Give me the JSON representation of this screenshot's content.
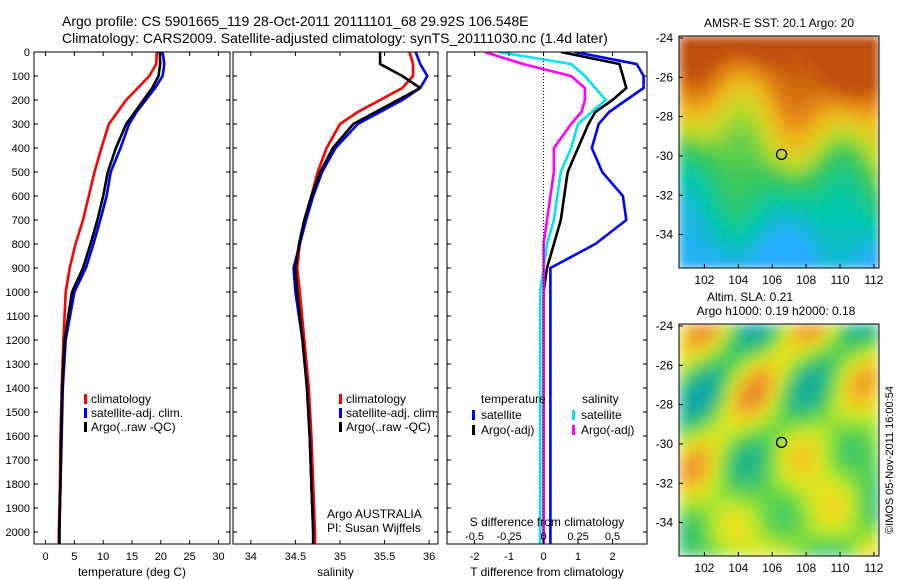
{
  "header": {
    "line1": "Argo profile: CS 5901665_119 28-Oct-2011 20111101_68 29.92S 106.548E",
    "line2": "Climatology: CARS2009. Satellite-adjusted climatology: synTS_20111030.nc (1.4d later)"
  },
  "colors": {
    "climatology": "#ff0000",
    "satellite": "#0000ff",
    "argo": "#000000",
    "salinity_satellite": "#00e5ee",
    "salinity_argo": "#ff00ff"
  },
  "depth_axis": {
    "ylim": [
      0,
      2050
    ],
    "ticks": [
      0,
      100,
      200,
      300,
      400,
      500,
      600,
      700,
      800,
      900,
      1000,
      1100,
      1200,
      1300,
      1400,
      1500,
      1600,
      1700,
      1800,
      1900,
      2000
    ],
    "inverted": true
  },
  "chart_data": [
    {
      "type": "line",
      "id": "temperature",
      "xlabel": "temperature (deg C)",
      "xlim": [
        -2,
        32
      ],
      "xticks": [
        0,
        5,
        10,
        15,
        20,
        25,
        30
      ],
      "legend": {
        "placement": "lower-left",
        "entries": [
          "climatology",
          "satellite-adj. clim.",
          "Argo(..raw -QC)"
        ]
      },
      "series": [
        {
          "name": "climatology",
          "color": "#ff0000",
          "x": [
            19.3,
            19.2,
            18.0,
            16.0,
            14.0,
            12.5,
            11.0,
            9.7,
            8.5,
            7.5,
            6.5,
            5.2,
            4.2,
            3.5,
            3.1,
            2.8,
            2.6,
            2.5,
            2.4,
            2.3,
            2.3
          ],
          "y": [
            0,
            50,
            100,
            150,
            200,
            250,
            300,
            400,
            500,
            600,
            700,
            800,
            900,
            1000,
            1200,
            1400,
            1600,
            1800,
            1900,
            2000,
            2050
          ]
        },
        {
          "name": "satellite-adj. clim.",
          "color": "#0000ff",
          "x": [
            20.3,
            20.6,
            20.3,
            19.0,
            17.4,
            15.8,
            14.5,
            13.0,
            11.3,
            10.6,
            9.5,
            8.3,
            7.0,
            5.0,
            3.5,
            3.0,
            2.8,
            2.6,
            2.5,
            2.4,
            2.4
          ],
          "y": [
            0,
            50,
            100,
            150,
            200,
            250,
            300,
            400,
            500,
            600,
            700,
            800,
            900,
            1000,
            1200,
            1400,
            1600,
            1800,
            1900,
            2000,
            2050
          ]
        },
        {
          "name": "Argo(..raw -QC)",
          "color": "#000000",
          "x": [
            19.8,
            19.9,
            19.6,
            18.5,
            17.0,
            15.5,
            14.0,
            12.2,
            10.8,
            10.0,
            9.0,
            7.8,
            6.5,
            4.6,
            3.3,
            2.9,
            2.7,
            2.6,
            2.5,
            2.4,
            2.4
          ],
          "y": [
            0,
            50,
            100,
            150,
            200,
            250,
            300,
            400,
            500,
            600,
            700,
            800,
            900,
            1000,
            1200,
            1400,
            1600,
            1800,
            1900,
            2000,
            2050
          ]
        }
      ]
    },
    {
      "type": "line",
      "id": "salinity",
      "xlabel": "salinity",
      "xlim": [
        33.8,
        36.1
      ],
      "xticks": [
        34,
        34.5,
        35,
        35.5,
        36
      ],
      "legend": {
        "placement": "lower-left",
        "entries": [
          "climatology",
          "satellite-adj. clim.",
          "Argo(..raw -QC)"
        ]
      },
      "annotations": [
        "Argo AUSTRALIA",
        "PI: Susan Wijffels"
      ],
      "series": [
        {
          "name": "climatology",
          "color": "#ff0000",
          "x": [
            35.78,
            35.82,
            35.82,
            35.7,
            35.45,
            35.2,
            35.0,
            34.85,
            34.75,
            34.68,
            34.6,
            34.55,
            34.52,
            34.55,
            34.6,
            34.65,
            34.68,
            34.7,
            34.72,
            34.72
          ],
          "y": [
            0,
            50,
            100,
            150,
            200,
            250,
            300,
            400,
            500,
            600,
            700,
            800,
            900,
            1000,
            1200,
            1400,
            1600,
            1800,
            2000,
            2050
          ]
        },
        {
          "name": "satellite-adj. clim.",
          "color": "#0000ff",
          "x": [
            35.85,
            35.9,
            35.98,
            35.9,
            35.7,
            35.45,
            35.2,
            34.95,
            34.8,
            34.7,
            34.62,
            34.55,
            34.48,
            34.5,
            34.58,
            34.63,
            34.66,
            34.68,
            34.7,
            34.7
          ],
          "y": [
            0,
            50,
            100,
            150,
            200,
            250,
            300,
            400,
            500,
            600,
            700,
            800,
            900,
            1000,
            1200,
            1400,
            1600,
            1800,
            2000,
            2050
          ]
        },
        {
          "name": "Argo(..raw -QC)",
          "color": "#000000",
          "x": [
            35.45,
            35.45,
            35.7,
            35.9,
            35.65,
            35.4,
            35.15,
            34.92,
            34.78,
            34.68,
            34.6,
            34.54,
            34.5,
            34.52,
            34.58,
            34.63,
            34.66,
            34.68,
            34.7,
            34.7
          ],
          "y": [
            0,
            50,
            100,
            150,
            200,
            250,
            300,
            400,
            500,
            600,
            700,
            800,
            900,
            1000,
            1200,
            1400,
            1600,
            1800,
            2000,
            2050
          ]
        }
      ]
    },
    {
      "type": "line",
      "id": "difference",
      "xlabel": "T difference from climatology",
      "xlabel_top": "S difference from climatology",
      "xlim": [
        -2.8,
        3.0
      ],
      "xticks": [
        -2,
        -1,
        0,
        1,
        2
      ],
      "xticks_top_labels": [
        "-0.5",
        "-0.25",
        "0",
        "0.25",
        "0.5"
      ],
      "xticks_top_positions": [
        -2,
        -1,
        0,
        1,
        2
      ],
      "legend": {
        "placement": "center",
        "entries": [
          "satellite",
          "Argo(-adj)",
          "satellite",
          "Argo(-adj)"
        ],
        "headings": [
          "temperature",
          "salinity"
        ]
      },
      "series": [
        {
          "name": "satellite",
          "group": "temperature",
          "color": "#0000ff",
          "x": [
            0.9,
            2.7,
            2.9,
            2.9,
            2.4,
            1.9,
            1.6,
            1.4,
            1.7,
            2.3,
            2.4,
            1.5,
            0.2,
            0.2,
            0.2,
            0.2,
            0.2
          ],
          "y": [
            0,
            50,
            100,
            150,
            200,
            250,
            300,
            400,
            500,
            600,
            700,
            800,
            900,
            1000,
            1400,
            1800,
            2050
          ]
        },
        {
          "name": "Argo(-adj)",
          "group": "temperature",
          "color": "#000000",
          "x": [
            0.5,
            2.2,
            2.3,
            2.4,
            2.0,
            1.5,
            1.3,
            1.0,
            0.7,
            0.6,
            0.5,
            0.3,
            0.1,
            0.0,
            0.0,
            0.0,
            0.0
          ],
          "y": [
            0,
            50,
            100,
            150,
            200,
            250,
            300,
            400,
            500,
            600,
            700,
            800,
            900,
            1000,
            1400,
            1800,
            2050
          ]
        },
        {
          "name": "satellite",
          "group": "salinity",
          "color": "#00e5ee",
          "x": [
            -1.3,
            0.8,
            1.2,
            1.5,
            1.8,
            1.4,
            1.0,
            0.8,
            0.5,
            0.4,
            0.3,
            0.1,
            0.0,
            -0.1,
            -0.1,
            -0.1,
            -0.1
          ],
          "y": [
            0,
            50,
            100,
            150,
            200,
            250,
            300,
            400,
            500,
            600,
            700,
            800,
            900,
            1000,
            1400,
            1800,
            2050
          ]
        },
        {
          "name": "Argo(-adj)",
          "group": "salinity",
          "color": "#ff00ff",
          "x": [
            -1.7,
            -0.6,
            0.8,
            1.2,
            1.2,
            1.1,
            0.8,
            0.3,
            0.3,
            0.2,
            0.1,
            0.0,
            0.0,
            0.0,
            0.0,
            0.0,
            0.0
          ],
          "y": [
            0,
            50,
            100,
            150,
            200,
            250,
            300,
            400,
            500,
            600,
            700,
            800,
            900,
            1000,
            1400,
            1800,
            2050
          ]
        }
      ]
    },
    {
      "type": "heatmap",
      "id": "sst_map",
      "title": "AMSR-E SST: 20.1  Argo: 20",
      "xlim": [
        100.5,
        112.3
      ],
      "ylim": [
        -35.7,
        -23.9
      ],
      "xticks": [
        102,
        104,
        106,
        108,
        110,
        112
      ],
      "yticks": [
        -24,
        -26,
        -28,
        -30,
        -32,
        -34
      ],
      "marker": {
        "lon": 106.55,
        "lat": -29.92
      }
    },
    {
      "type": "heatmap",
      "id": "sla_map",
      "title": "Altim. SLA: 0.21",
      "subtitle": "Argo h1000: 0.19  h2000: 0.18",
      "xlim": [
        100.5,
        112.3
      ],
      "ylim": [
        -35.7,
        -23.9
      ],
      "xticks": [
        102,
        104,
        106,
        108,
        110,
        112
      ],
      "yticks": [
        -24,
        -26,
        -28,
        -30,
        -32,
        -34
      ],
      "marker": {
        "lon": 106.55,
        "lat": -29.92
      }
    }
  ],
  "credit": "©IMOS 05-Nov-2011 16:00:54"
}
